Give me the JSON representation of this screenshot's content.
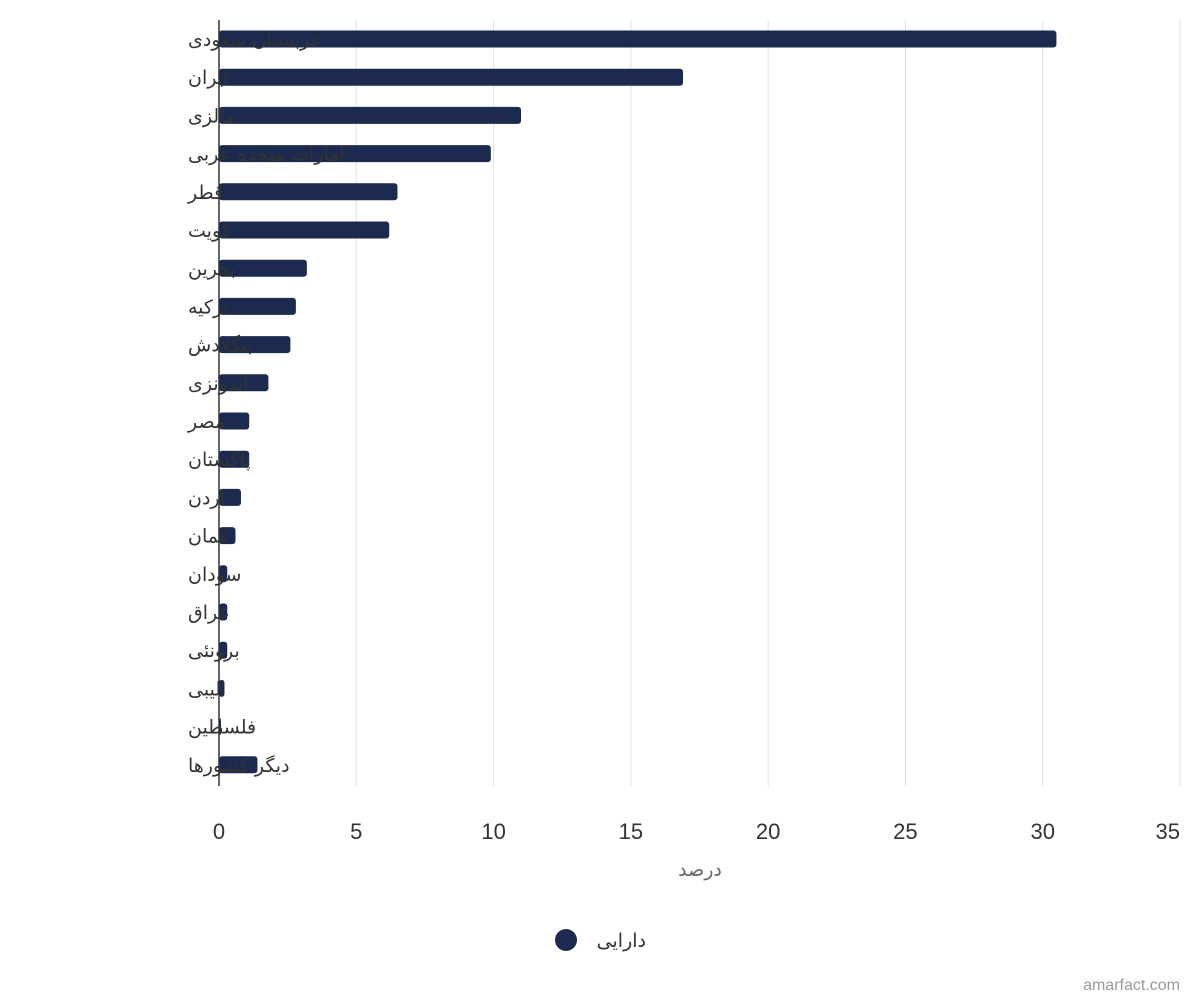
{
  "chart_data": {
    "type": "bar",
    "orientation": "horizontal",
    "categories": [
      "عربستان سعودی",
      "ایران",
      "مالزی",
      "امارات متحده عربی",
      "قطر",
      "کویت",
      "بحرین",
      "ترکیه",
      "بنگلادش",
      "اندونزی",
      "مصر",
      "پاکستان",
      "اردن",
      "عمان",
      "سودان",
      "عراق",
      "برونئی",
      "لیبی",
      "فلسطین",
      "دیگر کشورها"
    ],
    "series": [
      {
        "name": "دارایی",
        "color": "#1b2a4e",
        "values": [
          30.5,
          16.9,
          11.0,
          9.9,
          6.5,
          6.2,
          3.2,
          2.8,
          2.6,
          1.8,
          1.1,
          1.1,
          0.8,
          0.6,
          0.3,
          0.3,
          0.3,
          0.2,
          0.05,
          1.4
        ]
      }
    ],
    "xlabel": "درصد",
    "xlim": [
      0,
      35
    ],
    "xticks": [
      0,
      5,
      10,
      15,
      20,
      25,
      30,
      35
    ],
    "grid": true,
    "legend_position": "bottom",
    "credit": "amarfact.com"
  }
}
